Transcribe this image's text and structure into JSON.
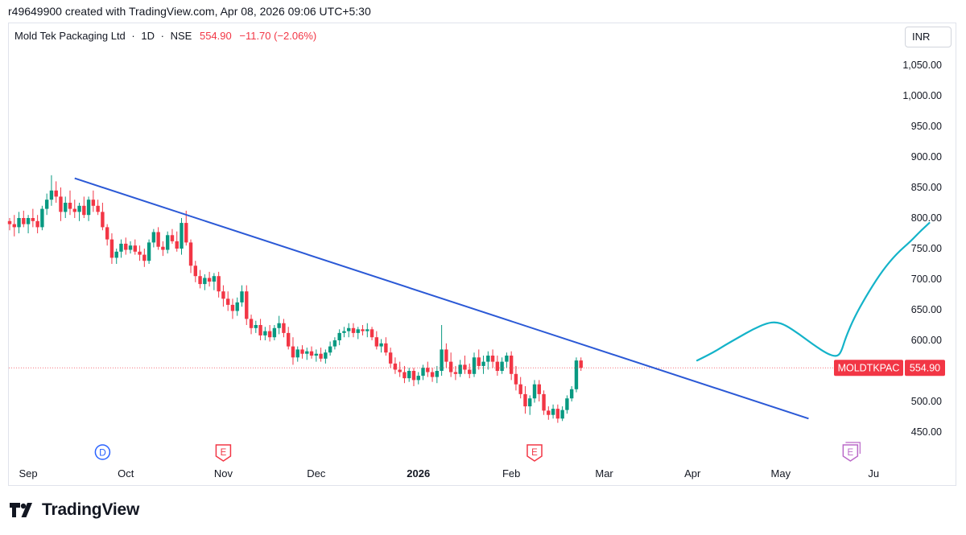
{
  "header": {
    "creator_line": "r49649900 created with TradingView.com, Apr 08, 2026 09:06 UTC+5:30"
  },
  "legend": {
    "symbol_name": "Mold Tek Packaging Ltd",
    "interval": "1D",
    "exchange": "NSE",
    "last": "554.90",
    "change": "−11.70 (−2.06%)"
  },
  "currency": "INR",
  "price_label": {
    "ticker": "MOLDTKPAC",
    "value": "554.90"
  },
  "footer": {
    "brand": "TradingView"
  },
  "colors": {
    "up": "#089981",
    "down": "#f23645",
    "trendline": "#2b59d6",
    "drawing": "#14b3c9",
    "event_dividend": "#2962ff",
    "event_earnings": "#f23645",
    "event_future": "#ba68c8"
  },
  "chart_data": {
    "type": "candlestick",
    "ylim": [
      420,
      1090
    ],
    "y_ticks": [
      "1,050.00",
      "1,000.00",
      "950.00",
      "900.00",
      "850.00",
      "800.00",
      "750.00",
      "700.00",
      "650.00",
      "600.00",
      "550.00",
      "500.00",
      "450.00"
    ],
    "y_tick_values": [
      1050,
      1000,
      950,
      900,
      850,
      800,
      750,
      700,
      650,
      600,
      550,
      500,
      450
    ],
    "x_ticks": [
      {
        "label": "Sep",
        "bar": 4,
        "bold": false
      },
      {
        "label": "Oct",
        "bar": 25,
        "bold": false
      },
      {
        "label": "Nov",
        "bar": 46,
        "bold": false
      },
      {
        "label": "Dec",
        "bar": 66,
        "bold": false
      },
      {
        "label": "2026",
        "bar": 88,
        "bold": true
      },
      {
        "label": "Feb",
        "bar": 108,
        "bold": false
      },
      {
        "label": "Mar",
        "bar": 128,
        "bold": false
      },
      {
        "label": "Apr",
        "bar": 147,
        "bold": false
      },
      {
        "label": "May",
        "bar": 166,
        "bold": false
      },
      {
        "label": "Ju",
        "bar": 186,
        "bold": false
      }
    ],
    "ohlc": [
      [
        795,
        800,
        780,
        790
      ],
      [
        790,
        805,
        770,
        785
      ],
      [
        785,
        810,
        775,
        800
      ],
      [
        800,
        812,
        785,
        790
      ],
      [
        790,
        805,
        775,
        800
      ],
      [
        800,
        815,
        785,
        795
      ],
      [
        795,
        805,
        775,
        785
      ],
      [
        785,
        820,
        780,
        815
      ],
      [
        815,
        840,
        805,
        830
      ],
      [
        830,
        870,
        820,
        845
      ],
      [
        845,
        860,
        825,
        835
      ],
      [
        835,
        850,
        795,
        810
      ],
      [
        810,
        835,
        800,
        825
      ],
      [
        825,
        845,
        805,
        815
      ],
      [
        815,
        830,
        800,
        810
      ],
      [
        810,
        825,
        795,
        820
      ],
      [
        820,
        835,
        800,
        805
      ],
      [
        805,
        835,
        795,
        830
      ],
      [
        830,
        845,
        810,
        820
      ],
      [
        820,
        830,
        805,
        810
      ],
      [
        810,
        825,
        780,
        785
      ],
      [
        785,
        790,
        755,
        765
      ],
      [
        765,
        775,
        725,
        735
      ],
      [
        735,
        750,
        725,
        745
      ],
      [
        745,
        765,
        735,
        758
      ],
      [
        758,
        768,
        740,
        748
      ],
      [
        748,
        762,
        742,
        755
      ],
      [
        755,
        765,
        740,
        745
      ],
      [
        745,
        755,
        730,
        740
      ],
      [
        740,
        750,
        720,
        730
      ],
      [
        730,
        765,
        725,
        760
      ],
      [
        760,
        782,
        752,
        777
      ],
      [
        777,
        785,
        748,
        753
      ],
      [
        753,
        762,
        738,
        748
      ],
      [
        748,
        778,
        742,
        772
      ],
      [
        772,
        782,
        758,
        762
      ],
      [
        762,
        778,
        745,
        750
      ],
      [
        750,
        800,
        740,
        792
      ],
      [
        792,
        812,
        755,
        760
      ],
      [
        760,
        765,
        710,
        722
      ],
      [
        722,
        730,
        695,
        705
      ],
      [
        705,
        715,
        685,
        692
      ],
      [
        692,
        708,
        682,
        702
      ],
      [
        702,
        712,
        688,
        696
      ],
      [
        696,
        710,
        682,
        705
      ],
      [
        705,
        712,
        670,
        680
      ],
      [
        680,
        690,
        655,
        668
      ],
      [
        668,
        680,
        648,
        658
      ],
      [
        658,
        668,
        635,
        648
      ],
      [
        648,
        670,
        640,
        662
      ],
      [
        662,
        690,
        655,
        680
      ],
      [
        680,
        690,
        625,
        635
      ],
      [
        635,
        642,
        610,
        620
      ],
      [
        620,
        632,
        612,
        625
      ],
      [
        625,
        635,
        600,
        608
      ],
      [
        608,
        622,
        600,
        615
      ],
      [
        615,
        625,
        598,
        605
      ],
      [
        605,
        625,
        600,
        620
      ],
      [
        620,
        640,
        610,
        628
      ],
      [
        628,
        635,
        605,
        612
      ],
      [
        612,
        622,
        585,
        590
      ],
      [
        590,
        605,
        560,
        572
      ],
      [
        572,
        590,
        565,
        585
      ],
      [
        585,
        592,
        570,
        578
      ],
      [
        578,
        588,
        568,
        582
      ],
      [
        582,
        590,
        570,
        575
      ],
      [
        575,
        585,
        565,
        578
      ],
      [
        578,
        588,
        565,
        570
      ],
      [
        570,
        585,
        562,
        580
      ],
      [
        580,
        598,
        575,
        590
      ],
      [
        590,
        605,
        585,
        600
      ],
      [
        600,
        618,
        592,
        612
      ],
      [
        612,
        622,
        605,
        615
      ],
      [
        615,
        628,
        605,
        620
      ],
      [
        620,
        628,
        605,
        612
      ],
      [
        612,
        622,
        602,
        618
      ],
      [
        618,
        625,
        608,
        615
      ],
      [
        615,
        628,
        605,
        618
      ],
      [
        618,
        622,
        600,
        605
      ],
      [
        605,
        615,
        585,
        590
      ],
      [
        590,
        602,
        580,
        595
      ],
      [
        595,
        605,
        575,
        580
      ],
      [
        580,
        588,
        555,
        562
      ],
      [
        562,
        572,
        545,
        552
      ],
      [
        552,
        565,
        540,
        548
      ],
      [
        548,
        558,
        530,
        538
      ],
      [
        538,
        555,
        532,
        550
      ],
      [
        550,
        555,
        525,
        535
      ],
      [
        535,
        548,
        528,
        542
      ],
      [
        542,
        560,
        535,
        555
      ],
      [
        555,
        565,
        540,
        548
      ],
      [
        548,
        555,
        532,
        540
      ],
      [
        540,
        558,
        530,
        550
      ],
      [
        550,
        625,
        542,
        585
      ],
      [
        585,
        595,
        555,
        565
      ],
      [
        565,
        580,
        540,
        548
      ],
      [
        548,
        558,
        535,
        545
      ],
      [
        545,
        568,
        540,
        560
      ],
      [
        560,
        575,
        545,
        552
      ],
      [
        552,
        562,
        538,
        545
      ],
      [
        545,
        580,
        540,
        572
      ],
      [
        572,
        585,
        552,
        558
      ],
      [
        558,
        575,
        545,
        565
      ],
      [
        565,
        582,
        552,
        575
      ],
      [
        575,
        585,
        555,
        565
      ],
      [
        565,
        575,
        542,
        550
      ],
      [
        550,
        572,
        545,
        565
      ],
      [
        565,
        580,
        555,
        575
      ],
      [
        575,
        582,
        535,
        545
      ],
      [
        545,
        558,
        518,
        528
      ],
      [
        528,
        540,
        505,
        512
      ],
      [
        512,
        525,
        480,
        492
      ],
      [
        492,
        510,
        478,
        505
      ],
      [
        505,
        535,
        498,
        528
      ],
      [
        528,
        535,
        500,
        512
      ],
      [
        512,
        518,
        478,
        485
      ],
      [
        485,
        492,
        470,
        478
      ],
      [
        478,
        495,
        472,
        488
      ],
      [
        488,
        495,
        465,
        472
      ],
      [
        472,
        492,
        468,
        486
      ],
      [
        486,
        510,
        480,
        505
      ],
      [
        505,
        525,
        500,
        520
      ],
      [
        520,
        572,
        515,
        567
      ],
      [
        567,
        572,
        550,
        555
      ]
    ]
  },
  "drawings": {
    "trendline": {
      "from": {
        "bar": 14,
        "price": 865
      },
      "to": {
        "bar": 172,
        "price": 472
      }
    },
    "projection": [
      [
        148,
        567
      ],
      [
        151,
        578
      ],
      [
        154,
        592
      ],
      [
        157,
        605
      ],
      [
        160,
        618
      ],
      [
        163,
        628
      ],
      [
        165,
        630
      ],
      [
        167,
        625
      ],
      [
        170,
        610
      ],
      [
        173,
        593
      ],
      [
        176,
        578
      ],
      [
        178,
        573
      ],
      [
        179,
        580
      ],
      [
        180,
        605
      ],
      [
        182,
        640
      ],
      [
        185,
        680
      ],
      [
        188,
        715
      ],
      [
        191,
        742
      ],
      [
        194,
        762
      ],
      [
        196,
        778
      ],
      [
        198,
        792
      ]
    ]
  },
  "events": [
    {
      "type": "dividend",
      "letter": "D",
      "bar": 20
    },
    {
      "type": "earnings",
      "letter": "E",
      "bar": 46
    },
    {
      "type": "earnings",
      "letter": "E",
      "bar": 113
    },
    {
      "type": "earnings-upcoming",
      "letter": "E",
      "bar": 181
    }
  ]
}
